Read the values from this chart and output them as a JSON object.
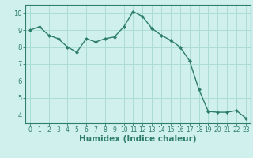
{
  "x": [
    0,
    1,
    2,
    3,
    4,
    5,
    6,
    7,
    8,
    9,
    10,
    11,
    12,
    13,
    14,
    15,
    16,
    17,
    18,
    19,
    20,
    21,
    22,
    23
  ],
  "y": [
    9.0,
    9.2,
    8.7,
    8.5,
    8.0,
    7.7,
    8.5,
    8.3,
    8.5,
    8.6,
    9.2,
    10.1,
    9.8,
    9.1,
    8.7,
    8.4,
    8.0,
    7.2,
    5.5,
    4.2,
    4.15,
    4.15,
    4.25,
    3.8
  ],
  "line_color": "#2e7d6e",
  "marker": "D",
  "marker_size": 2.0,
  "bg_color": "#cff0ec",
  "grid_color": "#aaddd6",
  "axis_color": "#2e7d6e",
  "xlabel": "Humidex (Indice chaleur)",
  "xlim": [
    -0.5,
    23.5
  ],
  "ylim": [
    3.5,
    10.5
  ],
  "yticks": [
    4,
    5,
    6,
    7,
    8,
    9,
    10
  ],
  "xticks": [
    0,
    1,
    2,
    3,
    4,
    5,
    6,
    7,
    8,
    9,
    10,
    11,
    12,
    13,
    14,
    15,
    16,
    17,
    18,
    19,
    20,
    21,
    22,
    23
  ],
  "font_color": "#2e7d6e",
  "tick_fontsize": 5.5,
  "ylabel_fontsize": 6.0,
  "xlabel_fontsize": 7.5,
  "linewidth": 1.0
}
